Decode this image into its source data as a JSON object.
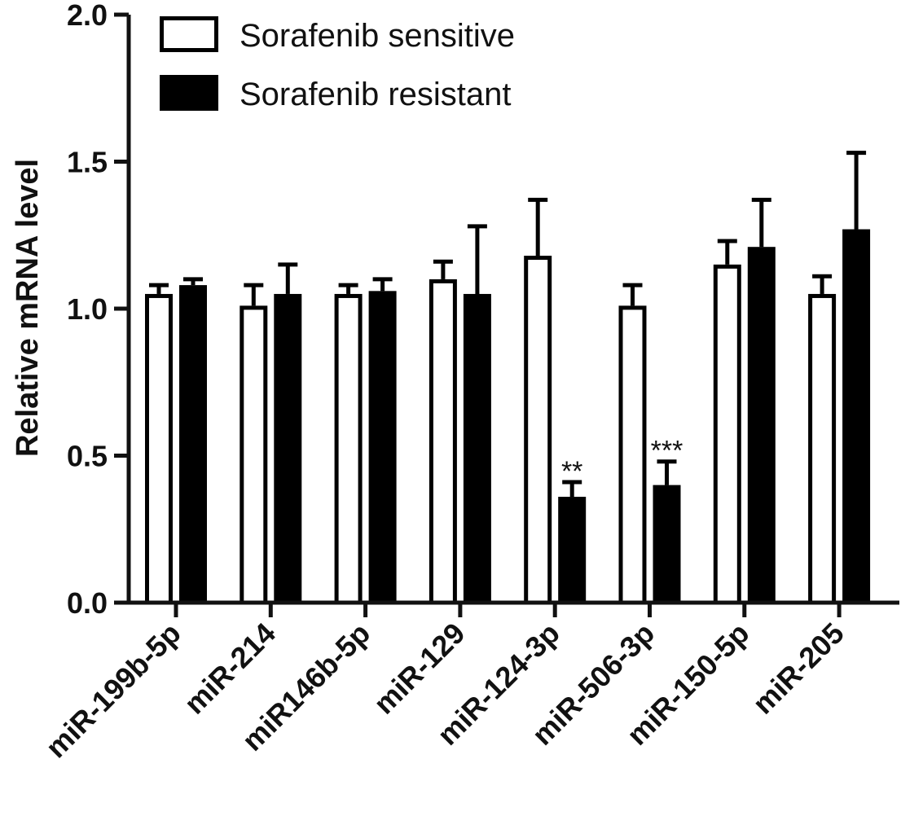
{
  "chart_data": {
    "type": "bar",
    "title": "",
    "xlabel": "",
    "ylabel": "Relative mRNA level",
    "ylim": [
      0,
      2.0
    ],
    "yticks": [
      0.0,
      0.5,
      1.0,
      1.5,
      2.0
    ],
    "ytick_labels": [
      "0.0",
      "0.5",
      "1.0",
      "1.5",
      "2.0"
    ],
    "grid": false,
    "legend_position": "top-left",
    "categories": [
      "miR-199b-5p",
      "miR-214",
      "miR146b-5p",
      "miR-129",
      "miR-124-3p",
      "miR-506-3p",
      "miR-150-5p",
      "miR-205"
    ],
    "series": [
      {
        "name": "Sorafenib sensitive",
        "style": "open",
        "color": "#ffffff",
        "edge_color": "#000000",
        "values": [
          1.05,
          1.01,
          1.05,
          1.1,
          1.18,
          1.01,
          1.15,
          1.05
        ],
        "errors": [
          0.03,
          0.07,
          0.03,
          0.06,
          0.19,
          0.07,
          0.08,
          0.06
        ]
      },
      {
        "name": "Sorafenib resistant",
        "style": "filled",
        "color": "#000000",
        "edge_color": "#000000",
        "values": [
          1.08,
          1.05,
          1.06,
          1.05,
          0.36,
          0.4,
          1.21,
          1.27
        ],
        "errors": [
          0.02,
          0.1,
          0.04,
          0.23,
          0.05,
          0.08,
          0.16,
          0.26
        ]
      }
    ],
    "annotations": [
      {
        "category": "miR-124-3p",
        "series": "Sorafenib resistant",
        "text": "**"
      },
      {
        "category": "miR-506-3p",
        "series": "Sorafenib resistant",
        "text": "***"
      }
    ]
  }
}
